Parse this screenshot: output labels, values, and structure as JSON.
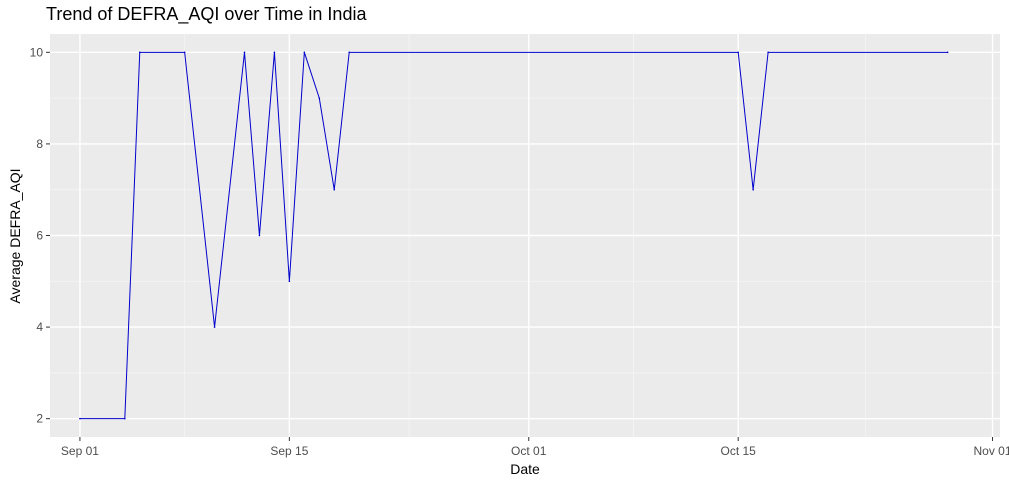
{
  "chart_data": {
    "type": "line",
    "title": "Trend of DEFRA_AQI over Time in India",
    "xlabel": "Date",
    "ylabel": "Average DEFRA_AQI",
    "x_ticks": [
      "Sep 01",
      "Sep 15",
      "Oct 01",
      "Oct 15",
      "Nov 01"
    ],
    "y_ticks": [
      2,
      4,
      6,
      8,
      10
    ],
    "grid": true,
    "line_color": "#0000cd",
    "panel_color": "#ebebeb",
    "x": [
      "2023-09-01",
      "2023-09-04",
      "2023-09-05",
      "2023-09-08",
      "2023-09-10",
      "2023-09-12",
      "2023-09-13",
      "2023-09-14",
      "2023-09-15",
      "2023-09-16",
      "2023-09-17",
      "2023-09-18",
      "2023-09-19",
      "2023-10-15",
      "2023-10-16",
      "2023-10-17",
      "2023-10-29"
    ],
    "values": [
      2,
      2,
      10,
      10,
      4,
      10,
      6,
      10,
      5,
      10,
      9,
      7,
      10,
      10,
      7,
      10,
      10
    ]
  }
}
